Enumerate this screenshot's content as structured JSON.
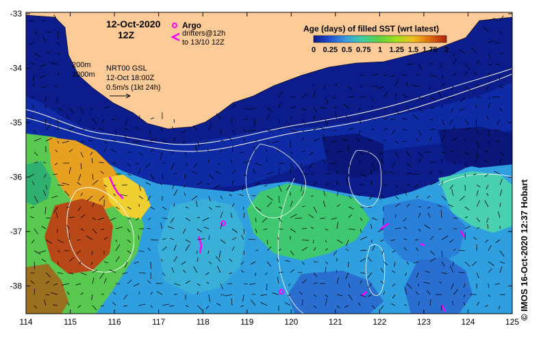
{
  "map": {
    "date_label": "12-Oct-2020",
    "time_label": "12Z",
    "argo_label": "Argo",
    "drifters_label_line1": "drifters@12h",
    "drifters_label_line2": "to 13/10 12Z",
    "contour_200": "200m",
    "contour_1000": "1000m",
    "nrt_line1": "NRT00 GSL",
    "nrt_line2": "12-Oct 18:00Z",
    "nrt_line3": "0.5m/s (1kt 24h)",
    "credit": "©  IMOS 16-Oct-2020 12:37 Hobart",
    "colorbar": {
      "title": "Age (days) of filled SST (wrt latest)",
      "tick_labels": [
        "0",
        "0.25",
        "0.5",
        "0.75",
        "1",
        "1.25",
        "1.5",
        "1.75",
        "2"
      ],
      "colors": [
        "#0a1a8c",
        "#1f4fd0",
        "#3aa0e0",
        "#40d0a0",
        "#60d040",
        "#a0e020",
        "#f0c020",
        "#e07010",
        "#b02010"
      ]
    },
    "x_axis": {
      "ticks": [
        "114",
        "115",
        "116",
        "117",
        "118",
        "119",
        "120",
        "121",
        "122",
        "123",
        "124",
        "125"
      ]
    },
    "y_axis": {
      "ticks": [
        "-33",
        "-34",
        "-35",
        "-36",
        "-37",
        "-38"
      ]
    },
    "land_color": "#fccb98",
    "ocean_color": "#0c1c8a",
    "argo_color": "#ff00ff"
  }
}
